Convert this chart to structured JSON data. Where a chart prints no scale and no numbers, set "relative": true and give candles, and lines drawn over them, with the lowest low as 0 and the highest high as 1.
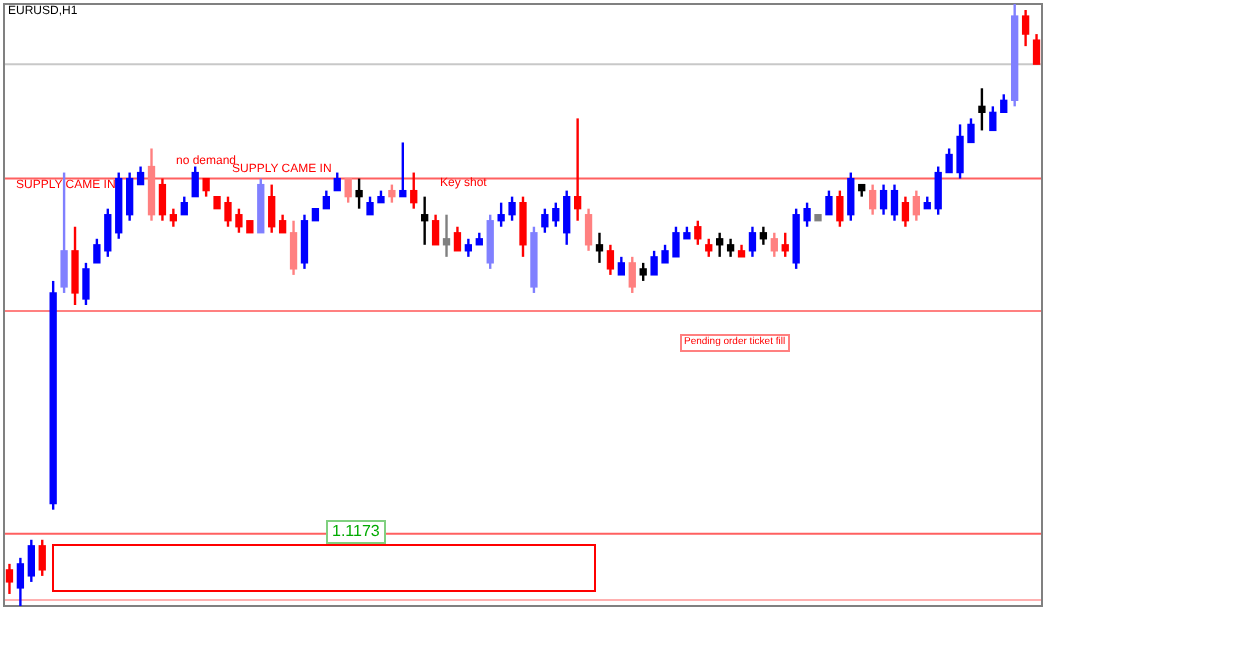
{
  "chart_data": {
    "type": "candlestick",
    "title": "EURUSD,H1",
    "relative": true,
    "grid": false,
    "legend": false,
    "categories": [
      null,
      null,
      null,
      null,
      null,
      null,
      null,
      null,
      null,
      null,
      null,
      null,
      null,
      null,
      null,
      null,
      null,
      null,
      null,
      null,
      null,
      null,
      null,
      null,
      null,
      null,
      null,
      null,
      null,
      null,
      null,
      null,
      null,
      null,
      null,
      null,
      null,
      null,
      null,
      null,
      null,
      null,
      null,
      null,
      null,
      null,
      null,
      null,
      null,
      null,
      null,
      null,
      null,
      null,
      null,
      null,
      null,
      null,
      null,
      null,
      null,
      null,
      null,
      null,
      null,
      null,
      null,
      null,
      null,
      null,
      null,
      null,
      null,
      null,
      null,
      null,
      null,
      null,
      null,
      null,
      null,
      null,
      null,
      null,
      null,
      null,
      null,
      null,
      null,
      null,
      null,
      null,
      null,
      null,
      null
    ],
    "ohlc": [
      [
        0.06,
        0.07,
        0.02,
        0.04
      ],
      [
        0.03,
        0.08,
        0.0,
        0.07
      ],
      [
        0.05,
        0.11,
        0.04,
        0.1
      ],
      [
        0.1,
        0.11,
        0.05,
        0.06
      ],
      [
        0.17,
        0.54,
        0.16,
        0.52
      ],
      [
        0.53,
        0.72,
        0.52,
        0.59
      ],
      [
        0.59,
        0.63,
        0.5,
        0.52
      ],
      [
        0.51,
        0.57,
        0.5,
        0.56
      ],
      [
        0.57,
        0.61,
        0.57,
        0.6
      ],
      [
        0.59,
        0.66,
        0.58,
        0.65
      ],
      [
        0.62,
        0.72,
        0.61,
        0.71
      ],
      [
        0.65,
        0.72,
        0.64,
        0.71
      ],
      [
        0.7,
        0.73,
        0.7,
        0.72
      ],
      [
        0.73,
        0.76,
        0.64,
        0.65
      ],
      [
        0.7,
        0.71,
        0.64,
        0.65
      ],
      [
        0.65,
        0.66,
        0.63,
        0.64
      ],
      [
        0.65,
        0.68,
        0.65,
        0.67
      ],
      [
        0.68,
        0.73,
        0.68,
        0.72
      ],
      [
        0.71,
        0.71,
        0.68,
        0.69
      ],
      [
        0.68,
        0.68,
        0.66,
        0.66
      ],
      [
        0.67,
        0.68,
        0.63,
        0.64
      ],
      [
        0.65,
        0.66,
        0.62,
        0.63
      ],
      [
        0.64,
        0.64,
        0.62,
        0.62
      ],
      [
        0.62,
        0.71,
        0.62,
        0.7
      ],
      [
        0.68,
        0.7,
        0.62,
        0.63
      ],
      [
        0.64,
        0.65,
        0.62,
        0.62
      ],
      [
        0.62,
        0.64,
        0.55,
        0.56
      ],
      [
        0.57,
        0.65,
        0.56,
        0.64
      ],
      [
        0.64,
        0.66,
        0.64,
        0.66
      ],
      [
        0.66,
        0.69,
        0.66,
        0.68
      ],
      [
        0.69,
        0.72,
        0.69,
        0.71
      ],
      [
        0.71,
        0.71,
        0.67,
        0.68
      ],
      [
        0.69,
        0.71,
        0.66,
        0.68
      ],
      [
        0.65,
        0.68,
        0.65,
        0.67
      ],
      [
        0.67,
        0.69,
        0.67,
        0.68
      ],
      [
        0.69,
        0.7,
        0.67,
        0.68
      ],
      [
        0.68,
        0.77,
        0.68,
        0.69
      ],
      [
        0.69,
        0.72,
        0.66,
        0.67
      ],
      [
        0.65,
        0.68,
        0.6,
        0.64
      ],
      [
        0.64,
        0.65,
        0.6,
        0.6
      ],
      [
        0.61,
        0.65,
        0.58,
        0.6
      ],
      [
        0.62,
        0.63,
        0.59,
        0.59
      ],
      [
        0.59,
        0.61,
        0.58,
        0.6
      ],
      [
        0.6,
        0.62,
        0.6,
        0.61
      ],
      [
        0.57,
        0.65,
        0.56,
        0.64
      ],
      [
        0.64,
        0.67,
        0.63,
        0.65
      ],
      [
        0.65,
        0.68,
        0.64,
        0.67
      ],
      [
        0.67,
        0.68,
        0.58,
        0.6
      ],
      [
        0.53,
        0.63,
        0.52,
        0.62
      ],
      [
        0.63,
        0.66,
        0.62,
        0.65
      ],
      [
        0.64,
        0.67,
        0.63,
        0.66
      ],
      [
        0.62,
        0.69,
        0.6,
        0.68
      ],
      [
        0.68,
        0.81,
        0.64,
        0.66
      ],
      [
        0.65,
        0.66,
        0.59,
        0.6
      ],
      [
        0.6,
        0.62,
        0.57,
        0.59
      ],
      [
        0.59,
        0.6,
        0.55,
        0.56
      ],
      [
        0.55,
        0.58,
        0.55,
        0.57
      ],
      [
        0.57,
        0.58,
        0.52,
        0.53
      ],
      [
        0.56,
        0.57,
        0.54,
        0.55
      ],
      [
        0.55,
        0.59,
        0.55,
        0.58
      ],
      [
        0.57,
        0.6,
        0.57,
        0.59
      ],
      [
        0.58,
        0.63,
        0.58,
        0.62
      ],
      [
        0.61,
        0.63,
        0.61,
        0.62
      ],
      [
        0.63,
        0.64,
        0.6,
        0.61
      ],
      [
        0.6,
        0.61,
        0.58,
        0.59
      ],
      [
        0.61,
        0.62,
        0.58,
        0.6
      ],
      [
        0.6,
        0.61,
        0.58,
        0.59
      ],
      [
        0.59,
        0.6,
        0.58,
        0.58
      ],
      [
        0.59,
        0.63,
        0.58,
        0.62
      ],
      [
        0.62,
        0.63,
        0.6,
        0.61
      ],
      [
        0.61,
        0.62,
        0.58,
        0.59
      ],
      [
        0.6,
        0.62,
        0.58,
        0.59
      ],
      [
        0.57,
        0.66,
        0.56,
        0.65
      ],
      [
        0.64,
        0.67,
        0.63,
        0.66
      ],
      [
        0.64,
        0.65,
        0.64,
        0.65
      ],
      [
        0.65,
        0.69,
        0.65,
        0.68
      ],
      [
        0.68,
        0.69,
        0.63,
        0.64
      ],
      [
        0.65,
        0.72,
        0.64,
        0.71
      ],
      [
        0.7,
        0.7,
        0.68,
        0.69
      ],
      [
        0.69,
        0.7,
        0.65,
        0.66
      ],
      [
        0.66,
        0.7,
        0.65,
        0.69
      ],
      [
        0.65,
        0.7,
        0.64,
        0.69
      ],
      [
        0.67,
        0.68,
        0.63,
        0.64
      ],
      [
        0.68,
        0.69,
        0.64,
        0.65
      ],
      [
        0.66,
        0.68,
        0.66,
        0.67
      ],
      [
        0.66,
        0.73,
        0.65,
        0.72
      ],
      [
        0.72,
        0.76,
        0.72,
        0.75
      ],
      [
        0.72,
        0.8,
        0.71,
        0.78
      ],
      [
        0.77,
        0.81,
        0.77,
        0.8
      ],
      [
        0.83,
        0.86,
        0.79,
        0.82
      ],
      [
        0.79,
        0.83,
        0.79,
        0.82
      ],
      [
        0.82,
        0.85,
        0.82,
        0.84
      ],
      [
        0.84,
        1.0,
        0.83,
        0.98
      ],
      [
        0.98,
        0.99,
        0.93,
        0.95
      ],
      [
        0.94,
        0.95,
        0.9,
        0.9
      ]
    ],
    "colors": [
      "#ff0000",
      "#0000ff",
      "#0000ff",
      "#ff0000",
      "#0000ff",
      "#8080ff",
      "#ff0000",
      "#0000ff",
      "#0000ff",
      "#0000ff",
      "#0000ff",
      "#0000ff",
      "#0000ff",
      "#ff8080",
      "#ff0000",
      "#ff0000",
      "#0000ff",
      "#0000ff",
      "#ff0000",
      "#ff0000",
      "#ff0000",
      "#ff0000",
      "#ff0000",
      "#8080ff",
      "#ff0000",
      "#ff0000",
      "#ff8080",
      "#0000ff",
      "#0000ff",
      "#0000ff",
      "#0000ff",
      "#ff8080",
      "#000000",
      "#0000ff",
      "#0000ff",
      "#ff8080",
      "#0000ff",
      "#ff0000",
      "#000000",
      "#ff0000",
      "#808080",
      "#ff0000",
      "#0000ff",
      "#0000ff",
      "#8080ff",
      "#0000ff",
      "#0000ff",
      "#ff0000",
      "#8080ff",
      "#0000ff",
      "#0000ff",
      "#0000ff",
      "#ff0000",
      "#ff8080",
      "#000000",
      "#ff0000",
      "#0000ff",
      "#ff8080",
      "#000000",
      "#0000ff",
      "#0000ff",
      "#0000ff",
      "#0000ff",
      "#ff0000",
      "#ff0000",
      "#000000",
      "#000000",
      "#ff0000",
      "#0000ff",
      "#000000",
      "#ff8080",
      "#ff0000",
      "#0000ff",
      "#0000ff",
      "#808080",
      "#0000ff",
      "#ff0000",
      "#0000ff",
      "#000000",
      "#ff8080",
      "#0000ff",
      "#0000ff",
      "#ff0000",
      "#ff8080",
      "#0000ff",
      "#0000ff",
      "#0000ff",
      "#0000ff",
      "#0000ff",
      "#000000",
      "#0000ff",
      "#0000ff",
      "#8080ff",
      "#ff0000",
      "#ff0000"
    ],
    "ref_lines": [
      {
        "axis": "y",
        "value": 0.9,
        "color": "#c8c8c8"
      },
      {
        "axis": "y",
        "value": 0.71,
        "color": "#ff6060"
      },
      {
        "axis": "y",
        "value": 0.49,
        "color": "#ff8080"
      },
      {
        "axis": "y",
        "value": 0.12,
        "color": "#ff6060"
      },
      {
        "axis": "y",
        "value": 0.01,
        "color": "#ffb0b0"
      }
    ],
    "annotations": [
      "SUPPLY CAME IN",
      "no demand",
      "SUPPLY CAME IN",
      "Key shot",
      "Pending order ticket fill",
      "1.1173"
    ]
  }
}
